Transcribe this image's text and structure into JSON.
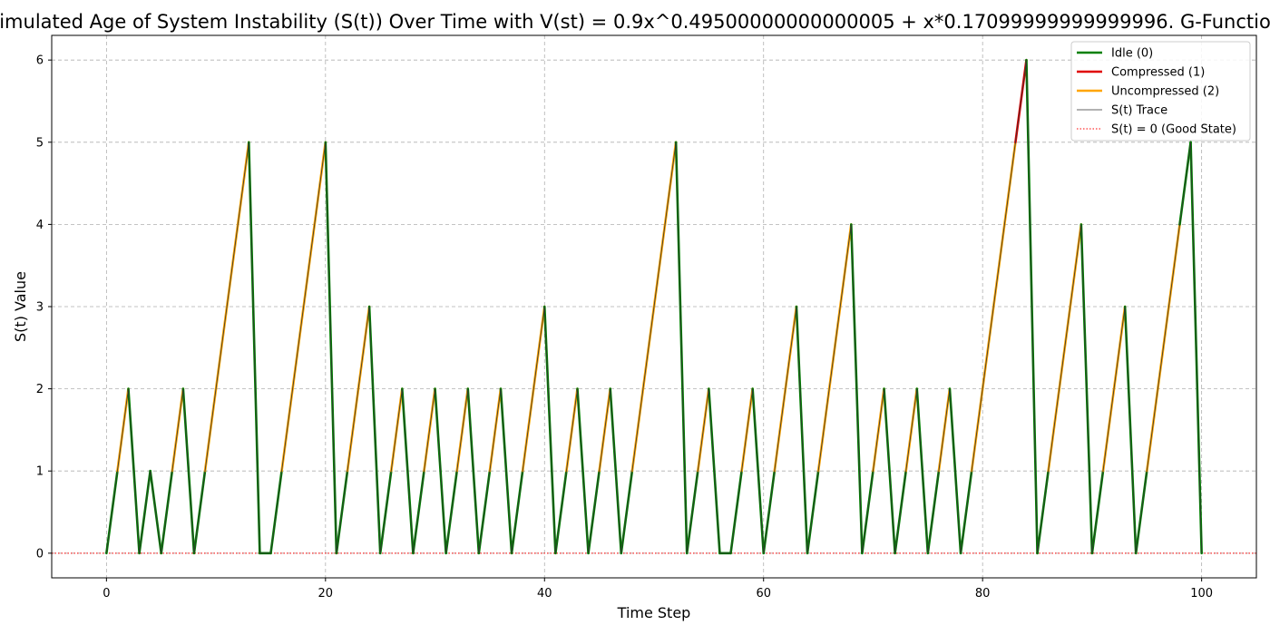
{
  "chart_data": {
    "type": "line",
    "title": "Simulated Age of System Instability (S(t)) Over Time with V(st) = 0.9x^0.49500000000000005 + x*0.17099999999999996. G-Function",
    "xlabel": "Time Step",
    "ylabel": "S(t) Value",
    "xlim": [
      -5,
      105
    ],
    "ylim": [
      -0.3,
      6.3
    ],
    "xticks": [
      0,
      20,
      40,
      60,
      80,
      100
    ],
    "yticks": [
      0,
      1,
      2,
      3,
      4,
      5,
      6
    ],
    "grid": true,
    "legend_position": "top-right",
    "x": [
      0,
      1,
      2,
      3,
      4,
      5,
      6,
      7,
      8,
      9,
      10,
      11,
      12,
      13,
      14,
      15,
      16,
      17,
      18,
      19,
      20,
      21,
      22,
      23,
      24,
      25,
      26,
      27,
      28,
      29,
      30,
      31,
      32,
      33,
      34,
      35,
      36,
      37,
      38,
      39,
      40,
      41,
      42,
      43,
      44,
      45,
      46,
      47,
      48,
      49,
      50,
      51,
      52,
      53,
      54,
      55,
      56,
      57,
      58,
      59,
      60,
      61,
      62,
      63,
      64,
      65,
      66,
      67,
      68,
      69,
      70,
      71,
      72,
      73,
      74,
      75,
      76,
      77,
      78,
      79,
      80,
      81,
      82,
      83,
      84,
      85,
      86,
      87,
      88,
      89,
      90,
      91,
      92,
      93,
      94,
      95,
      96,
      97,
      98,
      99,
      100
    ],
    "s_values": [
      0,
      1,
      2,
      0,
      1,
      0,
      1,
      2,
      0,
      1,
      2,
      3,
      4,
      5,
      0,
      0,
      1,
      2,
      3,
      4,
      5,
      0,
      1,
      2,
      3,
      0,
      1,
      2,
      0,
      1,
      2,
      0,
      1,
      2,
      0,
      1,
      2,
      0,
      1,
      2,
      3,
      0,
      1,
      2,
      0,
      1,
      2,
      0,
      1,
      2,
      3,
      4,
      5,
      0,
      1,
      2,
      0,
      0,
      1,
      2,
      0,
      1,
      2,
      3,
      0,
      1,
      2,
      3,
      4,
      0,
      1,
      2,
      0,
      1,
      2,
      0,
      1,
      2,
      0,
      1,
      2,
      3,
      4,
      5,
      6,
      0,
      1,
      2,
      3,
      4,
      0,
      1,
      2,
      3,
      0,
      1,
      2,
      3,
      4,
      5,
      0
    ],
    "actions": [
      0,
      0,
      2,
      0,
      0,
      0,
      0,
      2,
      0,
      0,
      2,
      2,
      2,
      2,
      0,
      0,
      0,
      2,
      2,
      2,
      2,
      0,
      0,
      2,
      2,
      0,
      0,
      2,
      0,
      0,
      2,
      0,
      0,
      2,
      0,
      0,
      2,
      0,
      0,
      2,
      2,
      0,
      0,
      2,
      0,
      0,
      2,
      0,
      0,
      2,
      2,
      2,
      2,
      0,
      0,
      2,
      0,
      0,
      0,
      2,
      0,
      0,
      2,
      2,
      0,
      0,
      2,
      2,
      2,
      0,
      0,
      2,
      0,
      0,
      2,
      0,
      0,
      2,
      0,
      0,
      2,
      2,
      2,
      2,
      1,
      0,
      0,
      2,
      2,
      2,
      0,
      0,
      2,
      2,
      0,
      0,
      2,
      2,
      2,
      0,
      0
    ],
    "series": [
      {
        "name": "Idle (0)",
        "action": 0,
        "color": "#008000"
      },
      {
        "name": "Compressed (1)",
        "action": 1,
        "color": "#e00000"
      },
      {
        "name": "Uncompressed (2)",
        "action": 2,
        "color": "#ffa500"
      },
      {
        "name": "S(t) Trace",
        "color": "#333333"
      },
      {
        "name": "S(t) = 0 (Good State)",
        "color": "#ff0000",
        "style": "dotted"
      }
    ]
  }
}
